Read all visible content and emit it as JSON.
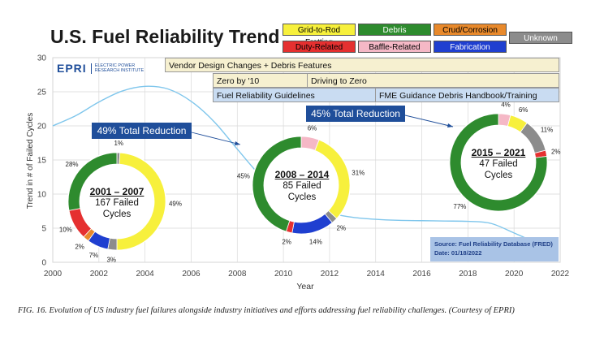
{
  "title": "U.S. Fuel Reliability Trend",
  "legend": [
    {
      "label": "Grid-to-Rod Fretting",
      "color": "#f7f03c"
    },
    {
      "label": "Debris",
      "color": "#2e8b2e"
    },
    {
      "label": "Crud/Corrosion",
      "color": "#e8892b"
    },
    {
      "label": "Unknown",
      "color": "#8c8c8c"
    },
    {
      "label": "Duty-Related",
      "color": "#e53030"
    },
    {
      "label": "Baffle-Related",
      "color": "#f5b8c6"
    },
    {
      "label": "Fabrication",
      "color": "#1f3fd0"
    }
  ],
  "logo": {
    "mark": "EPRI",
    "line1": "ELECTRIC POWER",
    "line2": "RESEARCH INSTITUTE"
  },
  "initiatives": {
    "vendor": "Vendor Design Changes + Debris Features",
    "zero10": "Zero by '10",
    "driving": "Driving to Zero",
    "guidelines": "Fuel Reliability Guidelines",
    "fme": "FME Guidance Debris Handbook/Training"
  },
  "callouts": {
    "first": "49% Total Reduction",
    "second": "45% Total Reduction"
  },
  "source": {
    "line1": "Source: Fuel Reliability Database (FRED)",
    "line2": "Date: 01/18/2022"
  },
  "caption": "FIG. 16.  Evolution of US industry fuel failures alongside industry initiatives and efforts addressing fuel reliability challenges. (Courtesy of EPRI)",
  "chart_data": {
    "type": "line",
    "xlabel": "Year",
    "ylabel": "Trend in # of Failed Cycles",
    "xlim": [
      2000,
      2022
    ],
    "ylim": [
      0,
      30
    ],
    "xticks": [
      2000,
      2002,
      2004,
      2006,
      2008,
      2010,
      2012,
      2014,
      2016,
      2018,
      2020,
      2022
    ],
    "yticks": [
      0,
      5,
      10,
      15,
      20,
      25,
      30
    ],
    "trend": {
      "x": [
        2000,
        2001,
        2002,
        2003,
        2004,
        2005,
        2006,
        2007,
        2008,
        2009,
        2010,
        2011,
        2012,
        2013,
        2014,
        2015,
        2016,
        2017,
        2018,
        2019,
        2020,
        2021
      ],
      "y": [
        20,
        21.5,
        23.5,
        25.1,
        25.8,
        25.4,
        23.6,
        20.6,
        16.6,
        12.7,
        9.7,
        8.0,
        7.2,
        6.6,
        6.3,
        6.15,
        6.1,
        6.05,
        6.0,
        5.7,
        4.3,
        2.8
      ]
    },
    "donuts": [
      {
        "range": "2001 – 2007",
        "failures": "167 Failed Cycles",
        "slices": [
          {
            "category": "Unknown",
            "pct": 1,
            "label": "1%",
            "color": "#8c8c8c"
          },
          {
            "category": "Grid-to-Rod Fretting",
            "pct": 49,
            "label": "49%",
            "color": "#f7f03c"
          },
          {
            "category": "Unknown",
            "pct": 3,
            "label": "3%",
            "color": "#8c8c8c"
          },
          {
            "category": "Fabrication",
            "pct": 7,
            "label": "7%",
            "color": "#1f3fd0"
          },
          {
            "category": "Crud/Corrosion",
            "pct": 2,
            "label": "2%",
            "color": "#e8892b"
          },
          {
            "category": "Duty-Related",
            "pct": 10,
            "label": "10%",
            "color": "#e53030"
          },
          {
            "category": "Debris",
            "pct": 28,
            "label": "28%",
            "color": "#2e8b2e"
          }
        ]
      },
      {
        "range": "2008 – 2014",
        "failures": "85 Failed Cycles",
        "slices": [
          {
            "category": "Baffle-Related",
            "pct": 6,
            "label": "6%",
            "color": "#f5b8c6"
          },
          {
            "category": "Grid-to-Rod Fretting",
            "pct": 31,
            "label": "31%",
            "color": "#f7f03c"
          },
          {
            "category": "Unknown",
            "pct": 2,
            "label": "2%",
            "color": "#8c8c8c"
          },
          {
            "category": "Fabrication",
            "pct": 14,
            "label": "14%",
            "color": "#1f3fd0"
          },
          {
            "category": "Duty-Related",
            "pct": 2,
            "label": "2%",
            "color": "#e53030"
          },
          {
            "category": "Debris",
            "pct": 45,
            "label": "45%",
            "color": "#2e8b2e"
          }
        ]
      },
      {
        "range": "2015 – 2021",
        "failures": "47 Failed Cycles",
        "slices": [
          {
            "category": "Baffle-Related",
            "pct": 4,
            "label": "4%",
            "color": "#f5b8c6"
          },
          {
            "category": "Grid-to-Rod Fretting",
            "pct": 6,
            "label": "6%",
            "color": "#f7f03c"
          },
          {
            "category": "Unknown",
            "pct": 11,
            "label": "11%",
            "color": "#8c8c8c"
          },
          {
            "category": "Duty-Related",
            "pct": 2,
            "label": "2%",
            "color": "#e53030"
          },
          {
            "category": "Debris",
            "pct": 77,
            "label": "77%",
            "color": "#2e8b2e"
          }
        ]
      }
    ]
  }
}
